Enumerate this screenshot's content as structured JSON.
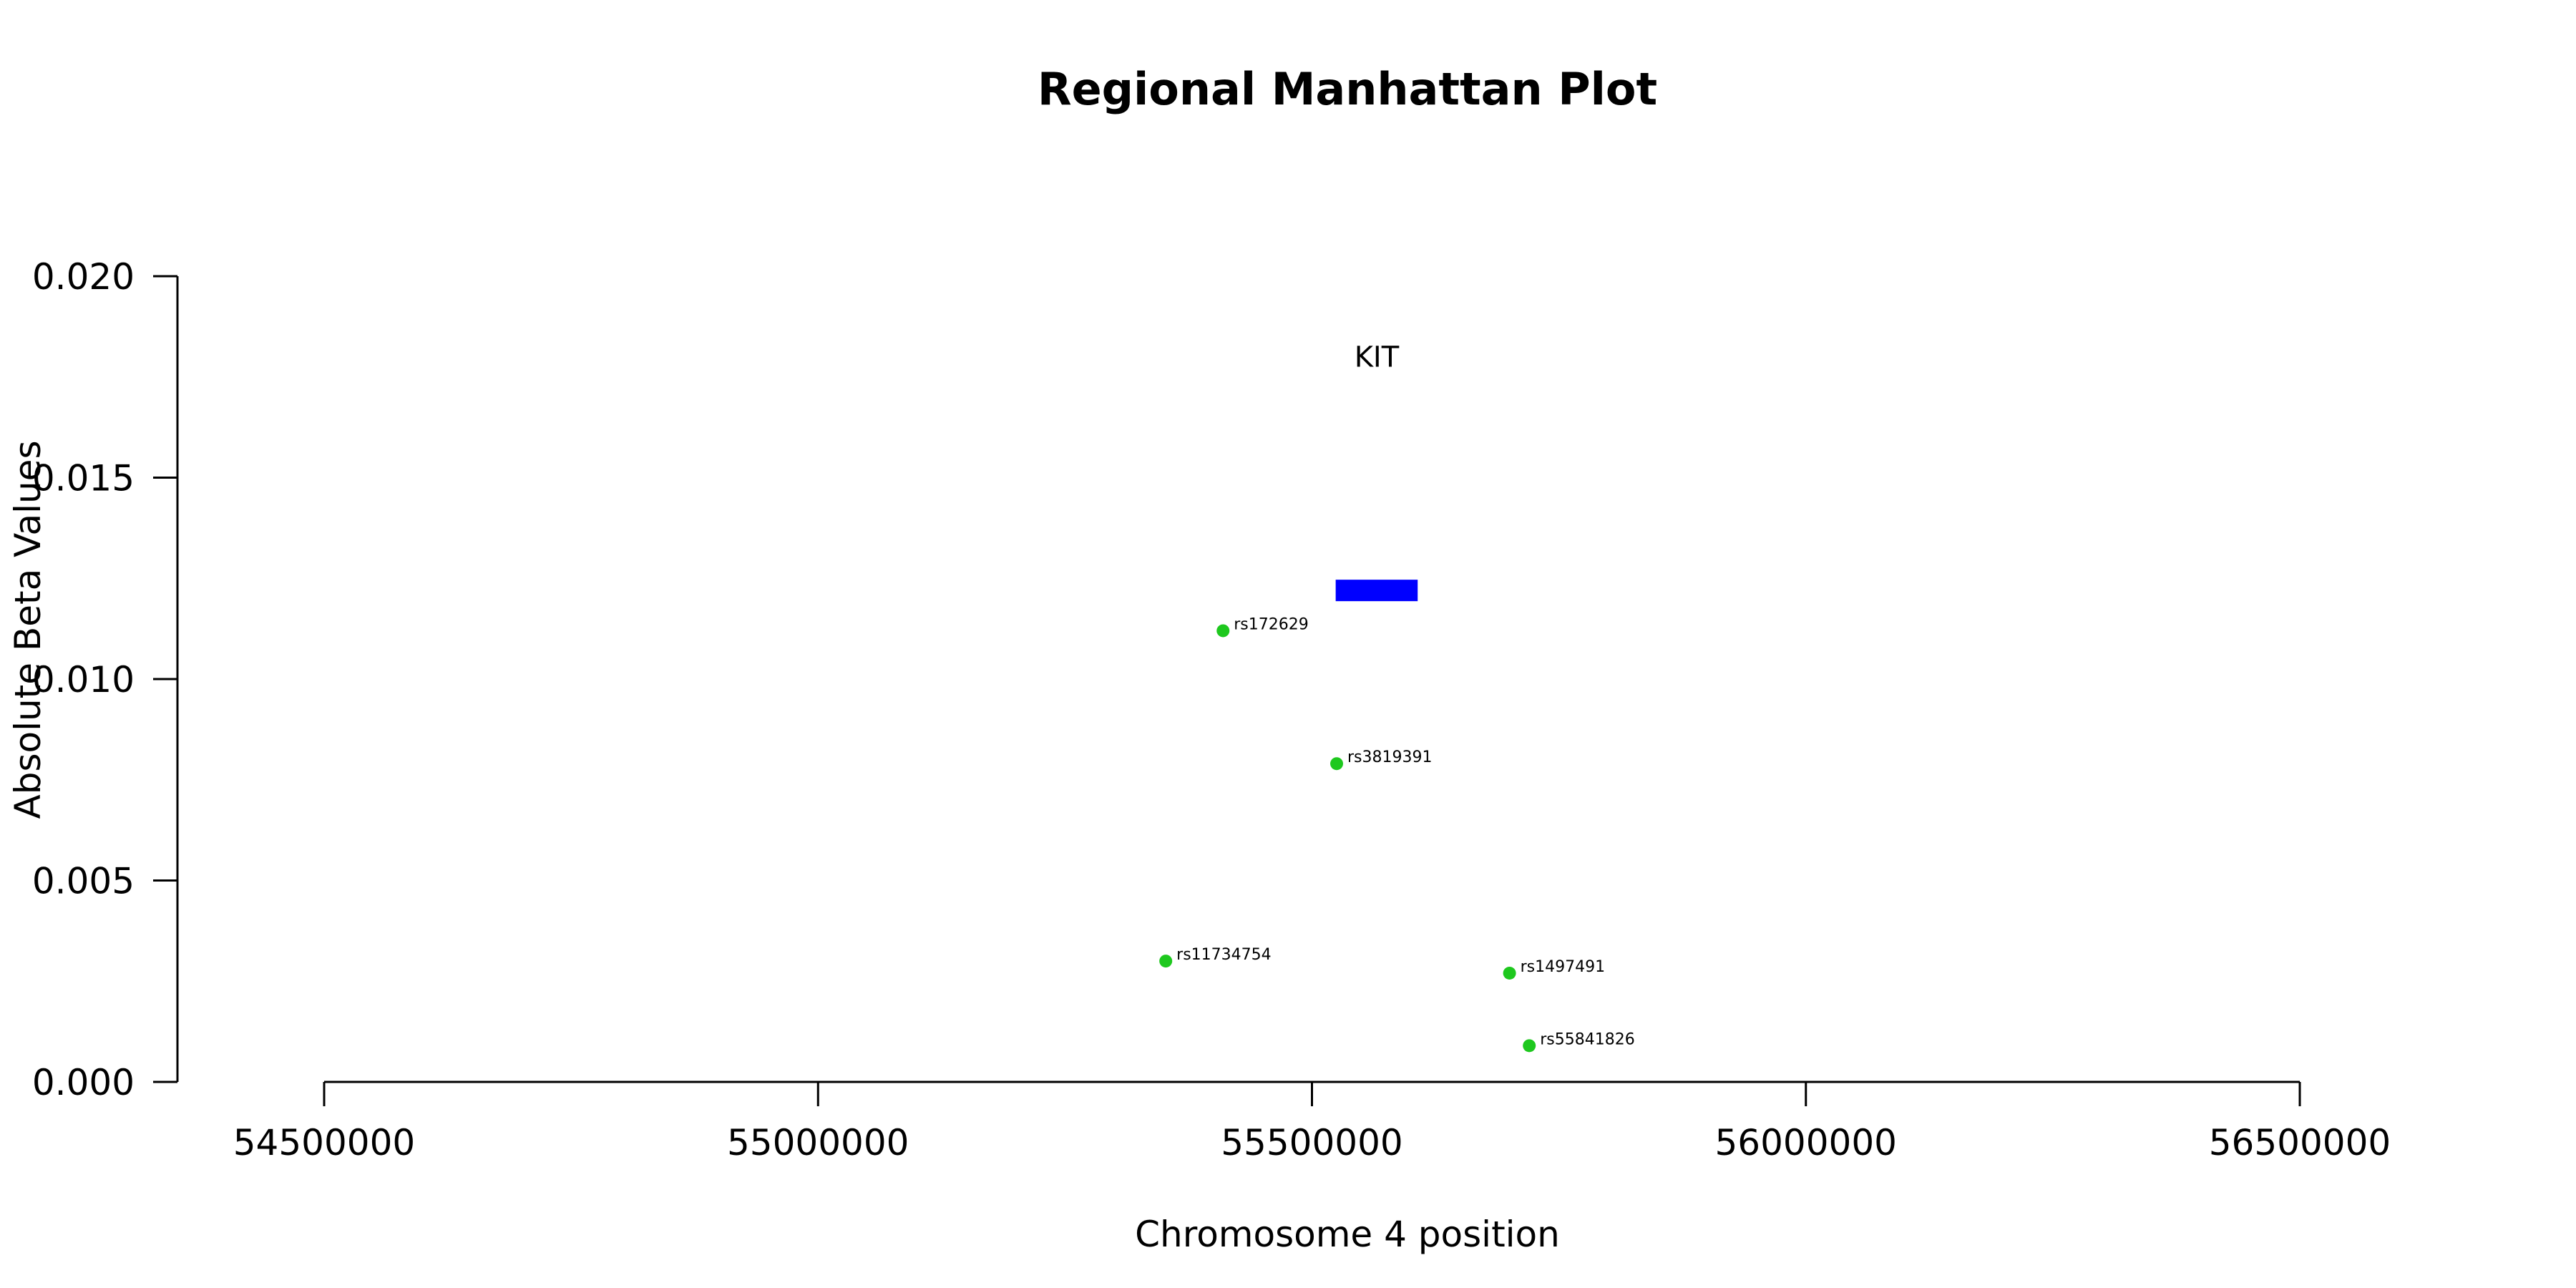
{
  "chart_data": {
    "type": "scatter",
    "title": "Regional Manhattan Plot",
    "xlabel": "Chromosome 4 position",
    "ylabel": "Absolute Beta Values",
    "xlim": [
      54500000,
      56500000
    ],
    "ylim": [
      0,
      0.02
    ],
    "x_ticks": [
      54500000,
      55000000,
      55500000,
      56000000,
      56500000
    ],
    "x_tick_labels": [
      "54500000",
      "55000000",
      "55500000",
      "56000000",
      "56500000"
    ],
    "y_ticks": [
      0,
      0.005,
      0.01,
      0.015,
      0.02
    ],
    "y_tick_labels": [
      "0.000",
      "0.005",
      "0.010",
      "0.015",
      "0.020"
    ],
    "grid": false,
    "point_color": "#1ec81e",
    "points": [
      {
        "label": "rs172629",
        "x": 55410000,
        "y": 0.0112
      },
      {
        "label": "rs3819391",
        "x": 55525000,
        "y": 0.0079
      },
      {
        "label": "rs11734754",
        "x": 55352000,
        "y": 0.003
      },
      {
        "label": "rs1497491",
        "x": 55700000,
        "y": 0.0027
      },
      {
        "label": "rs55841826",
        "x": 55720000,
        "y": 0.0009
      }
    ],
    "genes": [
      {
        "name": "KIT",
        "start": 55524000,
        "end": 55607000,
        "y": 0.0122,
        "label_y": 0.018,
        "color": "#0000ff"
      }
    ]
  }
}
